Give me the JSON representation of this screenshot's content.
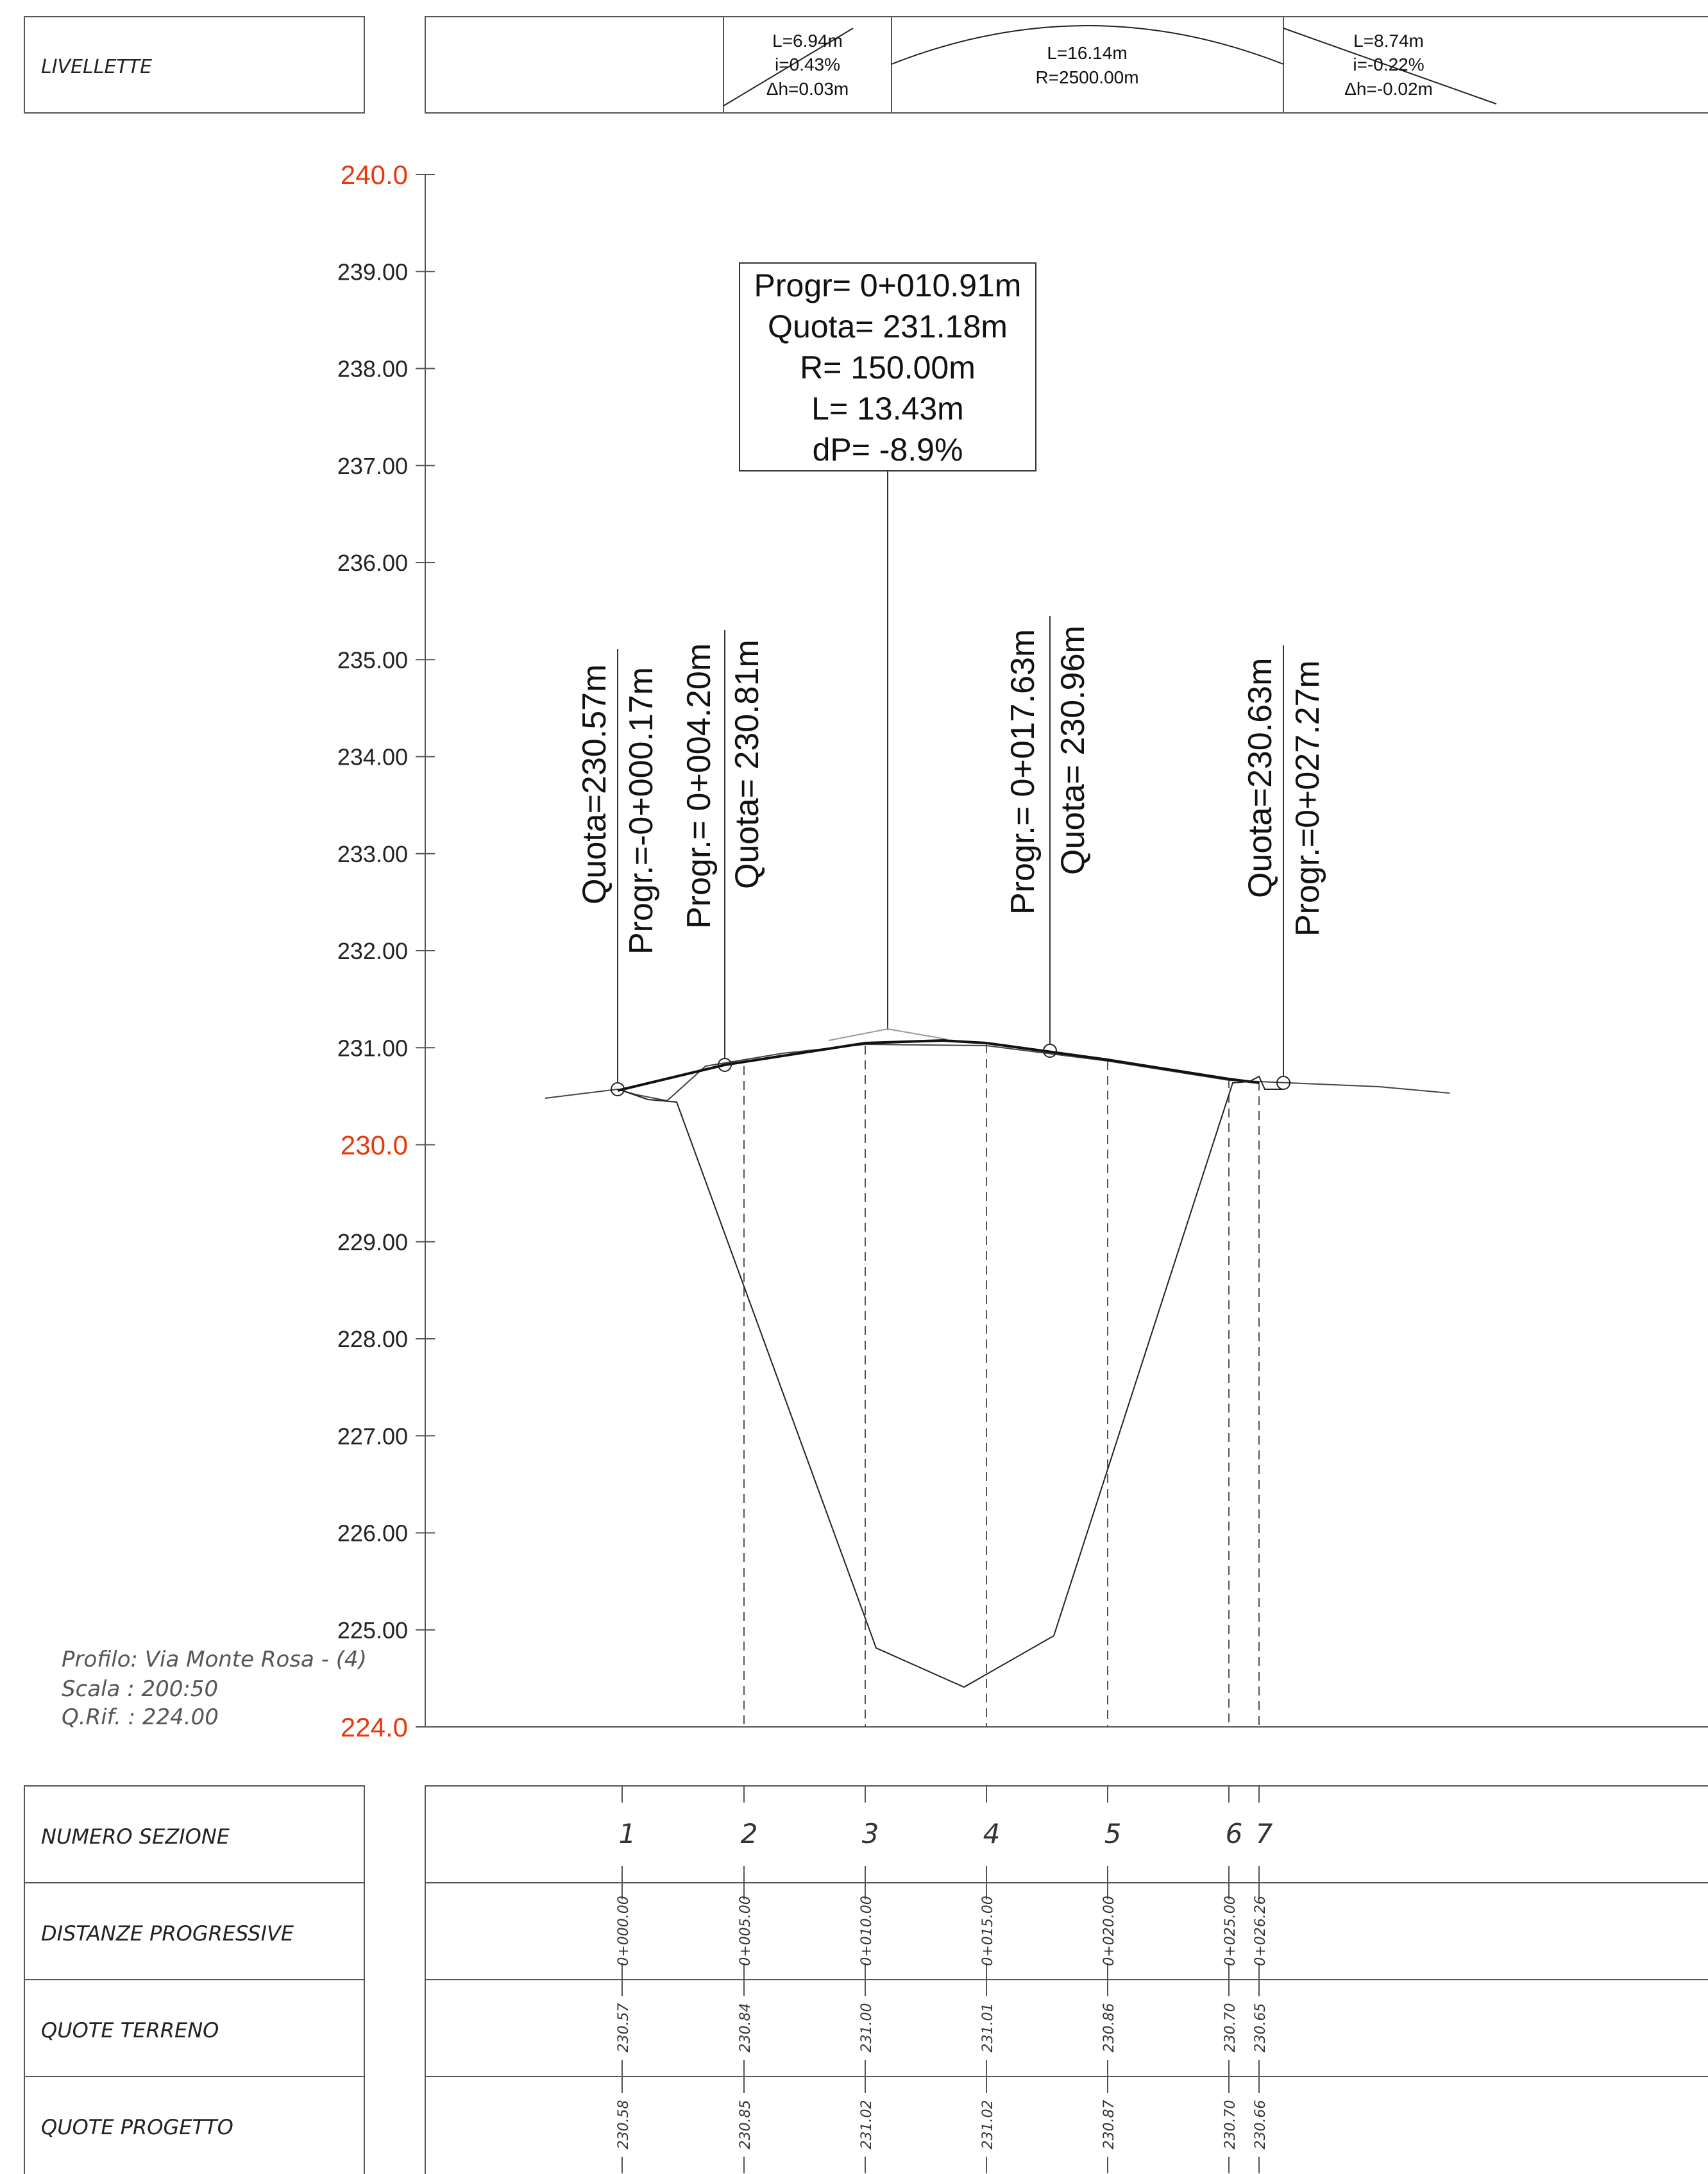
{
  "livellette": {
    "label": "LIVELLETTE",
    "segments": [
      {
        "line1": "L=6.94m",
        "line2": "i=0.43%",
        "line3": "Δh=0.03m"
      },
      {
        "line1": "L=16.14m",
        "line2": "R=2500.00m"
      },
      {
        "line1": "L=8.74m",
        "line2": "i=-0.22%",
        "line3": "Δh=-0.02m"
      }
    ]
  },
  "y_axis": {
    "ticks": [
      "240.0",
      "239.00",
      "238.00",
      "237.00",
      "236.00",
      "235.00",
      "234.00",
      "233.00",
      "232.00",
      "231.00",
      "230.0",
      "229.00",
      "228.00",
      "227.00",
      "226.00",
      "225.00",
      "224.0"
    ],
    "highlight_ticks": [
      "240.0",
      "230.0",
      "224.0"
    ],
    "highlight_color": "#e8380d"
  },
  "vertex_box": {
    "line1": "Progr= 0+010.91m",
    "line2": "Quota= 231.18m",
    "line3": "R= 150.00m",
    "line4": "L= 13.43m",
    "line5": "dP= -8.9%"
  },
  "callouts": {
    "p1_quota": "Quota=230.57m",
    "p1_progr": "Progr.=-0+000.17m",
    "p2_progr": "Progr.= 0+004.20m",
    "p2_quota": "Quota= 230.81m",
    "p3_progr": "Progr.= 0+017.63m",
    "p3_quota": "Quota= 230.96m",
    "p4_quota": "Quota=230.63m",
    "p4_progr": "Progr.=0+027.27m"
  },
  "profile_info": {
    "line1": "Profilo: Via Monte Rosa - (4)",
    "line2": "Scala : 200:50",
    "line3": "Q.Rif. : 224.00"
  },
  "table": {
    "rows": [
      {
        "label": "NUMERO SEZIONE",
        "values": [
          "1",
          "2",
          "3",
          "4",
          "5",
          "6",
          "7"
        ]
      },
      {
        "label": "DISTANZE PROGRESSIVE",
        "values": [
          "0+000.00",
          "0+005.00",
          "0+010.00",
          "0+015.00",
          "0+020.00",
          "0+025.00",
          "0+026.26"
        ]
      },
      {
        "label": "QUOTE TERRENO",
        "values": [
          "230.57",
          "230.84",
          "231.00",
          "231.01",
          "230.86",
          "230.70",
          "230.65"
        ]
      },
      {
        "label": "QUOTE PROGETTO",
        "values": [
          "230.58",
          "230.85",
          "231.02",
          "231.02",
          "230.87",
          "230.70",
          "230.66"
        ]
      }
    ]
  }
}
